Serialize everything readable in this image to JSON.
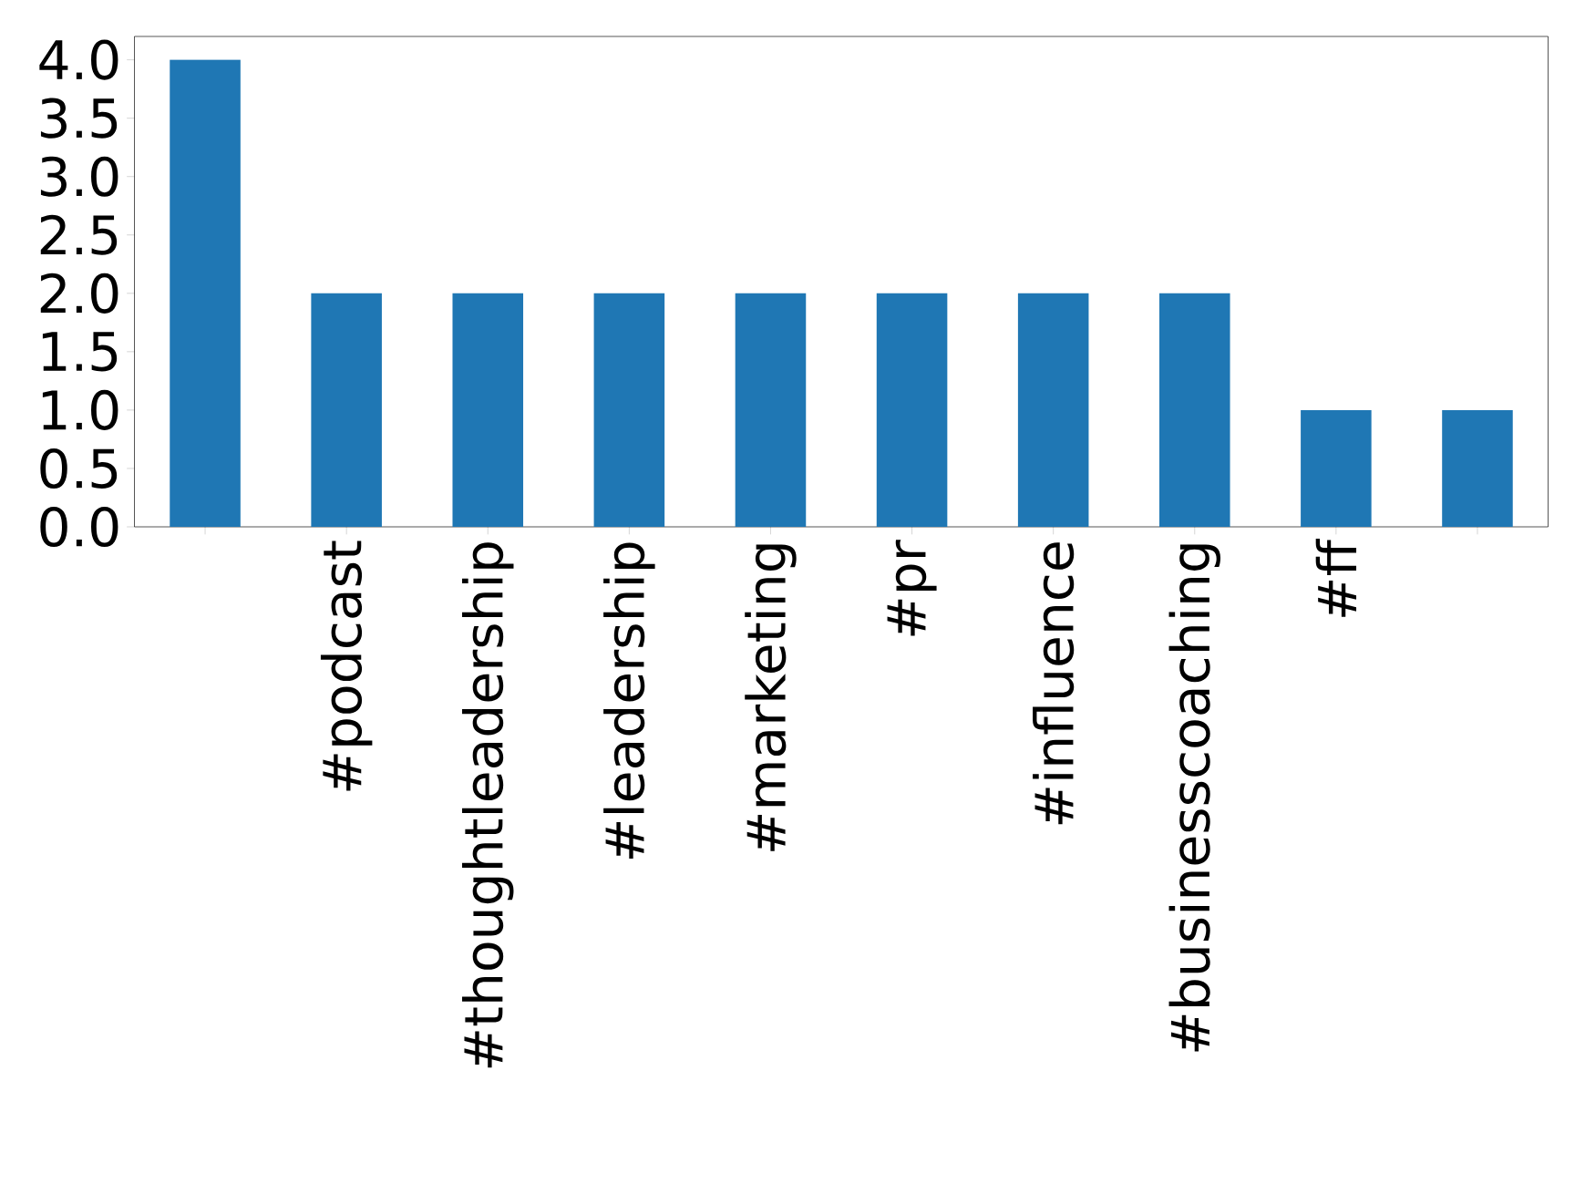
{
  "chart_data": {
    "type": "bar",
    "categories": [
      null,
      "#podcast",
      "#thoughtleadership",
      "#leadership",
      "#marketing",
      "#pr",
      "#influence",
      "#businesscoaching",
      "#ff",
      null
    ],
    "values": [
      4,
      2,
      2,
      2,
      2,
      2,
      2,
      2,
      1,
      1
    ],
    "color": "#1f77b4",
    "ylim": [
      0,
      4.2
    ],
    "yticks": [
      {
        "value": 0,
        "label": "0.0"
      },
      {
        "value": 0.5,
        "label": "0.5"
      },
      {
        "value": 1,
        "label": "1.0"
      },
      {
        "value": 1.5,
        "label": "1.5"
      },
      {
        "value": 2,
        "label": "2.0"
      },
      {
        "value": 2.5,
        "label": "2.5"
      },
      {
        "value": 3,
        "label": "3.0"
      },
      {
        "value": 3.5,
        "label": "3.5"
      },
      {
        "value": 4,
        "label": "4.0"
      }
    ]
  }
}
